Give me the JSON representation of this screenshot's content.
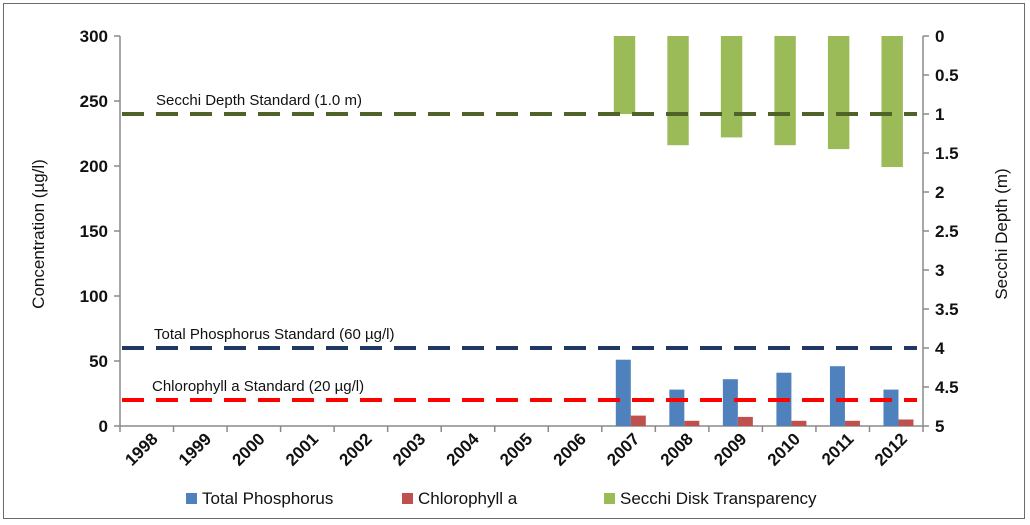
{
  "chart_data": {
    "type": "bar",
    "title": "",
    "categories": [
      "1998",
      "1999",
      "2000",
      "2001",
      "2002",
      "2003",
      "2004",
      "2005",
      "2006",
      "2007",
      "2008",
      "2009",
      "2010",
      "2011",
      "2012"
    ],
    "ylabel": "Concentration (µg/l)",
    "y2label": "Secchi Depth (m)",
    "ylim": [
      0,
      300
    ],
    "y2lim_inverted": [
      0,
      5
    ],
    "yticks": [
      "0",
      "50",
      "100",
      "150",
      "200",
      "250",
      "300"
    ],
    "y2ticks": [
      "0",
      "0.5",
      "1",
      "1.5",
      "2",
      "2.5",
      "3",
      "3.5",
      "4",
      "4.5",
      "5"
    ],
    "grid": false,
    "legend_position": "bottom",
    "series": [
      {
        "name": "Total Phosphorus",
        "axis": "left",
        "color": "#4f81bd",
        "values": [
          null,
          null,
          null,
          null,
          null,
          null,
          null,
          null,
          null,
          51,
          28,
          36,
          41,
          46,
          28
        ]
      },
      {
        "name": "Chlorophyll a",
        "axis": "left",
        "color": "#c0504d",
        "values": [
          null,
          null,
          null,
          null,
          null,
          null,
          null,
          null,
          null,
          8,
          4,
          7,
          4,
          4,
          5
        ]
      },
      {
        "name": "Secchi Disk Transparency",
        "axis": "right",
        "color": "#9bbb59",
        "values": [
          null,
          null,
          null,
          null,
          null,
          null,
          null,
          null,
          null,
          1.0,
          1.4,
          1.3,
          1.4,
          1.45,
          1.68
        ]
      }
    ],
    "standards": [
      {
        "label": "Secchi Depth Standard (1.0 m)",
        "value": 240,
        "axis": "left",
        "color": "#4f6228"
      },
      {
        "label": "Total Phosphorus Standard (60 µg/l)",
        "value": 60,
        "axis": "left",
        "color": "#1f3864"
      },
      {
        "label": "Chlorophyll a Standard (20 µg/l)",
        "value": 20,
        "axis": "left",
        "color": "#ff0000"
      }
    ]
  }
}
